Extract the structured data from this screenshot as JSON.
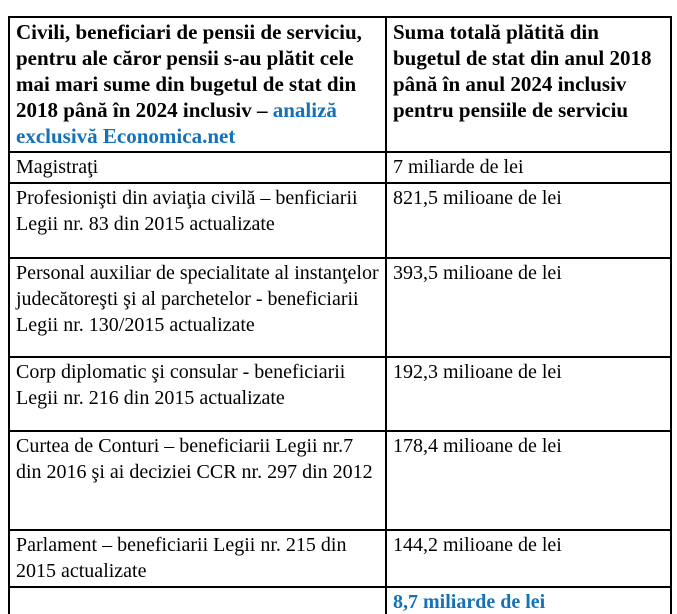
{
  "colors": {
    "accent_blue": "#1572b8",
    "text": "#000000",
    "border": "#000000",
    "background": "#ffffff"
  },
  "table": {
    "header": {
      "category_main": "Civili, beneficiari de pensii de serviciu, pentru ale căror pensii s-au plătit cele mai mari sume din bugetul de stat din 2018 până în 2024 inclusiv – ",
      "category_link": "analiză exclusivă Economica.net",
      "amount": "Suma totală plătită din bugetul de stat din anul 2018 până în anul 2024 inclusiv pentru pensiile de serviciu"
    },
    "rows": [
      {
        "category": "Magistraţi",
        "amount": "7 miliarde de lei"
      },
      {
        "category": "Profesionişti din aviaţia civilă – benficiarii Legii nr. 83 din 2015 actualizate",
        "amount": "821,5 milioane de lei"
      },
      {
        "category": "Personal auxiliar de specialitate al instanţelor judecătoreşti şi al parchetelor - beneficiarii Legii nr. 130/2015 actualizate",
        "amount": "393,5 milioane de lei"
      },
      {
        "category": "Corp diplomatic şi consular - beneficiarii Legii nr. 216 din 2015 actualizate",
        "amount": "192,3 milioane de lei"
      },
      {
        "category": "Curtea de Conturi – beneficiarii Legii nr.7 din 2016 şi ai deciziei CCR nr. 297 din 2012",
        "amount": "178,4 milioane de lei"
      },
      {
        "category": "Parlament – beneficiarii Legii nr. 215 din 2015 actualizate",
        "amount": "144,2 milioane de lei"
      }
    ],
    "total": {
      "category": "",
      "amount": "8,7 miliarde de lei"
    }
  }
}
